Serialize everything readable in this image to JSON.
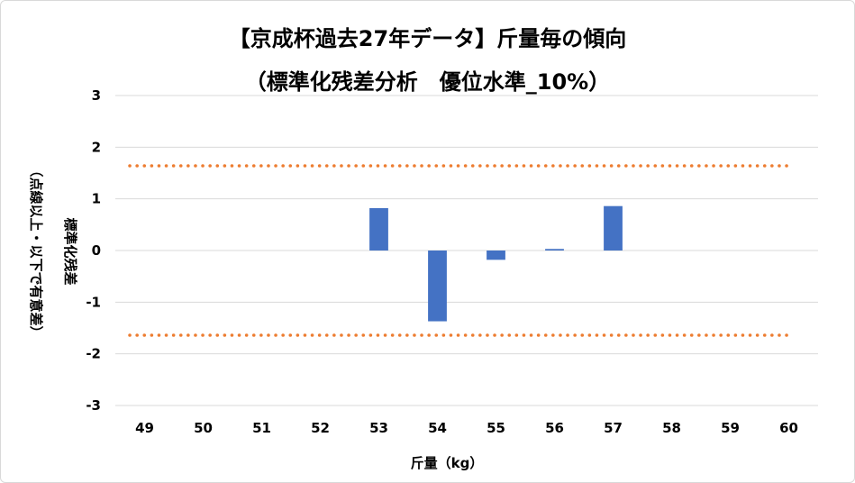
{
  "chart_data": {
    "type": "bar",
    "title": "【京成杯過去27年データ】斤量毎の傾向",
    "subtitle": "（標準化残差分析　優位水準_10%）",
    "xlabel": "斤量（kg）",
    "ylabel_line1": "標準化残差",
    "ylabel_line2": "（点線以上・以下で有意差）",
    "categories": [
      "49",
      "50",
      "51",
      "52",
      "53",
      "54",
      "55",
      "56",
      "57",
      "58",
      "59",
      "60"
    ],
    "series": [
      {
        "values": [
          null,
          null,
          null,
          null,
          0.82,
          -1.37,
          -0.18,
          0.03,
          0.86,
          null,
          null,
          null
        ],
        "color": "#4472c4"
      }
    ],
    "ylim": [
      -3,
      3
    ],
    "yticks": [
      3,
      2,
      1,
      0,
      -1,
      -2,
      -3
    ],
    "threshold_lines": [
      1.64,
      -1.64
    ],
    "threshold_color": "#ed7d31",
    "grid": true
  }
}
